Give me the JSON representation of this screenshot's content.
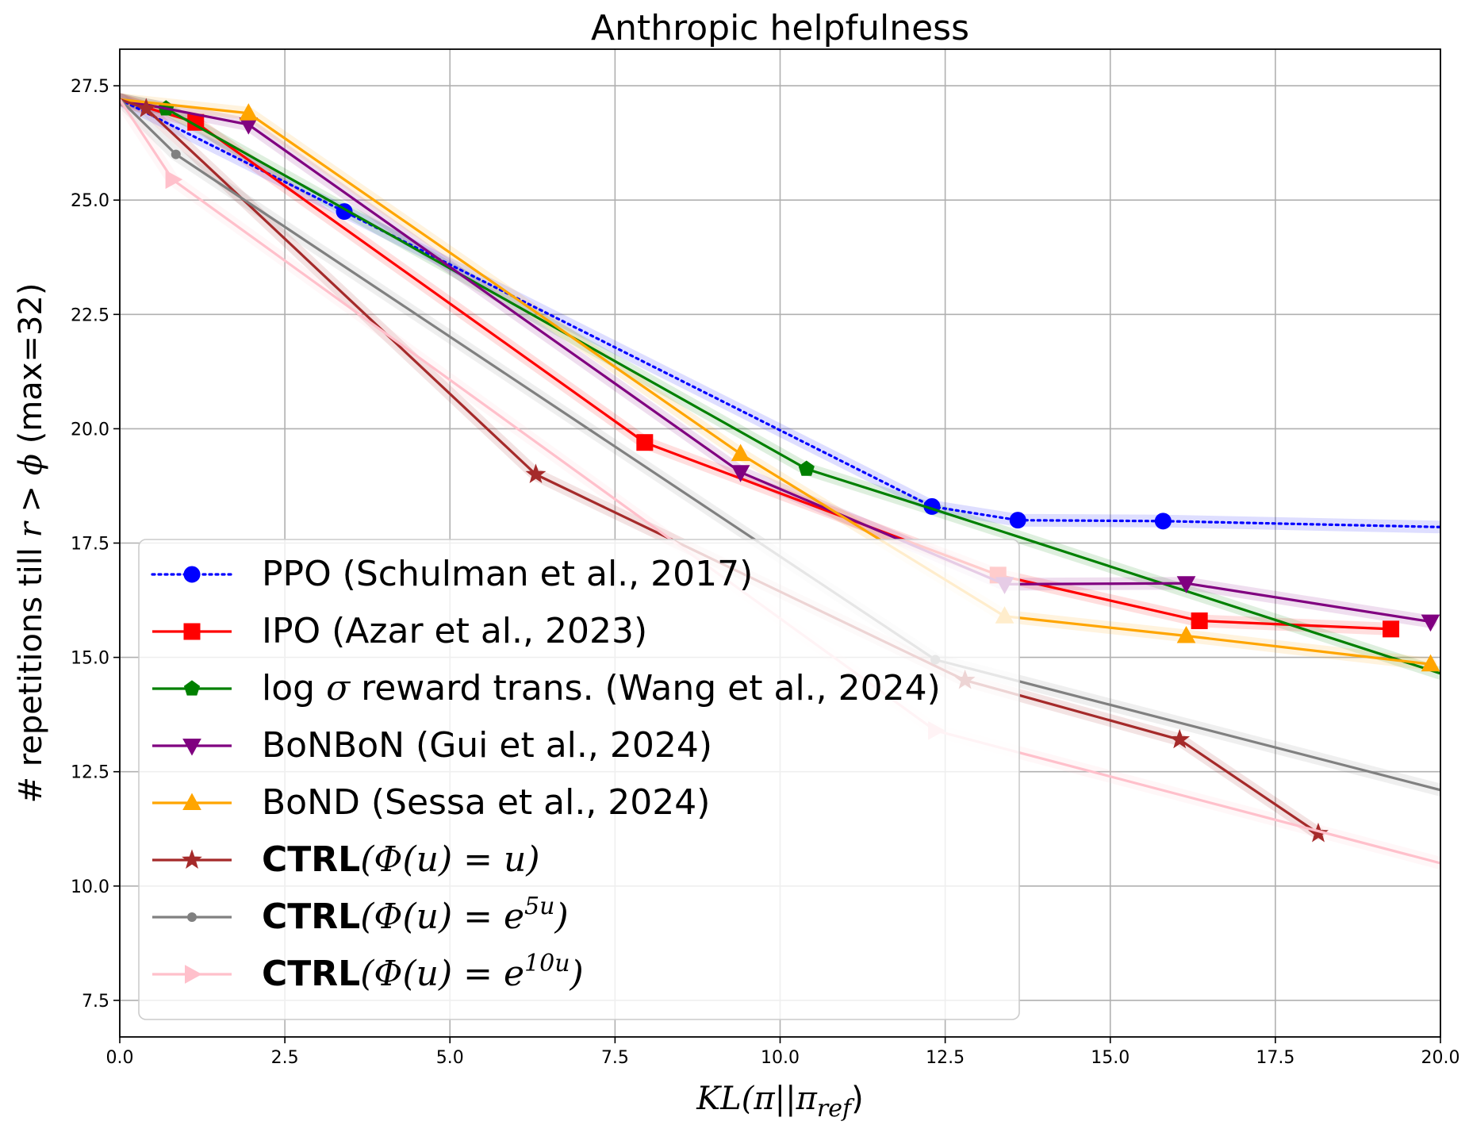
{
  "chart_data": {
    "type": "line",
    "title": "Anthropic helpfulness",
    "xlabel": {
      "base": "KL",
      "paren_open": "(π||π",
      "subscript": "ref",
      "paren_close": ")"
    },
    "ylabel": {
      "prefix": "# repetitions till ",
      "var_r": "r",
      "op": " > ",
      "var_phi": "ϕ",
      "suffix": " (max=32)"
    },
    "xlim": [
      0,
      20
    ],
    "ylim": [
      6.7,
      28.3
    ],
    "xticks": [
      "0.0",
      "2.5",
      "5.0",
      "7.5",
      "10.0",
      "12.5",
      "15.0",
      "17.5",
      "20.0"
    ],
    "xtick_values": [
      0,
      2.5,
      5,
      7.5,
      10,
      12.5,
      15,
      17.5,
      20
    ],
    "yticks": [
      "7.5",
      "10.0",
      "12.5",
      "15.0",
      "17.5",
      "20.0",
      "22.5",
      "25.0",
      "27.5"
    ],
    "ytick_values": [
      7.5,
      10,
      12.5,
      15,
      17.5,
      20,
      22.5,
      25,
      27.5
    ],
    "grid": true,
    "legend_position": "lower-left",
    "series": [
      {
        "id": "ppo",
        "name": "PPO (Schulman et al., 2017)",
        "color": "#0000ff",
        "marker": "circle",
        "dash": "dotted",
        "x": [
          0,
          3.4,
          12.3,
          13.6,
          15.8,
          20.0
        ],
        "y": [
          27.2,
          24.75,
          18.3,
          18.0,
          17.98,
          17.85
        ],
        "marker_points": [
          1,
          2,
          3,
          4
        ]
      },
      {
        "id": "ipo",
        "name": "IPO (Azar et al., 2023)",
        "color": "#ff0000",
        "marker": "square",
        "dash": "solid",
        "x": [
          0,
          1.15,
          7.95,
          13.3,
          16.35,
          19.25
        ],
        "y": [
          27.2,
          26.7,
          19.7,
          16.8,
          15.8,
          15.62
        ],
        "marker_points": [
          1,
          2,
          3,
          4,
          5
        ]
      },
      {
        "id": "logsigma",
        "name_prefix": "log ",
        "name_sigma": "σ",
        "name_suffix": " reward trans. (Wang et al., 2024)",
        "color": "#008000",
        "marker": "pentagon",
        "dash": "solid",
        "x": [
          0,
          0.7,
          10.4,
          12.3,
          20.0
        ],
        "y": [
          27.2,
          27.0,
          19.12,
          18.25,
          14.65
        ],
        "marker_points": [
          1,
          2
        ]
      },
      {
        "id": "bonbon",
        "name": "BoNBoN (Gui et al., 2024)",
        "color": "#800080",
        "marker": "triangle-down",
        "dash": "solid",
        "x": [
          0,
          1.95,
          9.4,
          13.4,
          16.15,
          19.85
        ],
        "y": [
          27.2,
          26.65,
          19.05,
          16.6,
          16.62,
          15.78
        ],
        "marker_points": [
          1,
          2,
          3,
          4,
          5
        ]
      },
      {
        "id": "bond",
        "name": "BoND (Sessa et al., 2024)",
        "color": "#ffa500",
        "marker": "triangle-up",
        "dash": "solid",
        "x": [
          0,
          1.95,
          9.4,
          13.4,
          16.15,
          19.85
        ],
        "y": [
          27.2,
          26.9,
          19.45,
          15.9,
          15.47,
          14.85
        ],
        "marker_points": [
          1,
          2,
          3,
          4,
          5
        ]
      },
      {
        "id": "ctrl_u",
        "name_bold": "CTRL",
        "name_math": "(Φ(u) = u)",
        "color": "#a52a2a",
        "marker": "star",
        "dash": "solid",
        "x": [
          0,
          0.4,
          6.3,
          12.8,
          16.05,
          18.15
        ],
        "y": [
          27.2,
          27.0,
          19.0,
          14.5,
          13.2,
          11.15
        ],
        "marker_points": [
          1,
          2,
          3,
          4,
          5
        ]
      },
      {
        "id": "ctrl_e5u",
        "name_bold": "CTRL",
        "name_math": "(Φ(u) = e",
        "name_sup": "5u",
        "name_close": ")",
        "color": "#808080",
        "marker": "dot",
        "dash": "solid",
        "x": [
          0,
          0.85,
          12.35,
          20.0
        ],
        "y": [
          27.2,
          26.0,
          14.95,
          12.1
        ],
        "marker_points": [
          1,
          2
        ]
      },
      {
        "id": "ctrl_e10u",
        "name_bold": "CTRL",
        "name_math": "(Φ(u) = e",
        "name_sup": "10u",
        "name_close": ")",
        "color": "#ffc0cb",
        "marker": "triangle-right",
        "dash": "solid",
        "x": [
          0,
          0.8,
          12.35,
          20.0
        ],
        "y": [
          27.2,
          25.45,
          13.4,
          10.5
        ],
        "marker_points": [
          1,
          2
        ]
      }
    ]
  }
}
